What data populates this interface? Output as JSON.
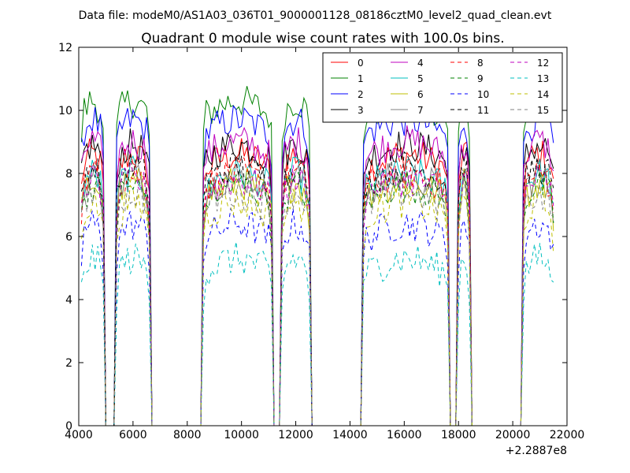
{
  "figure": {
    "suptitle": "Data file: modeM0/AS1A03_036T01_9000001128_08186cztM0_level2_quad_clean.evt"
  },
  "chart_data": {
    "type": "line",
    "title": "Quadrant 0 module wise count rates with 100.0s bins.",
    "xlabel": "",
    "ylabel": "",
    "x_offset_label": "+2.2887e8",
    "xlim": [
      4000,
      22000
    ],
    "ylim": [
      0,
      12
    ],
    "xticks": [
      4000,
      6000,
      8000,
      10000,
      12000,
      14000,
      16000,
      18000,
      20000,
      22000
    ],
    "yticks": [
      0,
      2,
      4,
      6,
      8,
      10,
      12
    ],
    "grid": false,
    "legend_position": "top-right",
    "legend_columns": 4,
    "segments": [
      {
        "start": 4100,
        "end": 4900
      },
      {
        "start": 5400,
        "end": 6600
      },
      {
        "start": 8600,
        "end": 11100
      },
      {
        "start": 11500,
        "end": 12500
      },
      {
        "start": 14500,
        "end": 17600
      },
      {
        "start": 18000,
        "end": 18400
      },
      {
        "start": 20400,
        "end": 21500
      }
    ],
    "zero_spans": [
      {
        "start": 5000,
        "end": 5200
      },
      {
        "start": 6700,
        "end": 8500
      },
      {
        "start": 11200,
        "end": 11300
      },
      {
        "start": 12600,
        "end": 14400
      },
      {
        "start": 17700,
        "end": 17800
      },
      {
        "start": 18500,
        "end": 20200
      }
    ],
    "series": [
      {
        "name": "0",
        "color": "#ff0000",
        "dash": "solid",
        "level": 8.5
      },
      {
        "name": "1",
        "color": "#008000",
        "dash": "solid",
        "level": 10.2
      },
      {
        "name": "2",
        "color": "#0000ff",
        "dash": "solid",
        "level": 9.6
      },
      {
        "name": "3",
        "color": "#000000",
        "dash": "solid",
        "level": 8.8
      },
      {
        "name": "4",
        "color": "#bf00bf",
        "dash": "solid",
        "level": 8.9
      },
      {
        "name": "5",
        "color": "#00bfbf",
        "dash": "solid",
        "level": 7.9
      },
      {
        "name": "6",
        "color": "#bfbf00",
        "dash": "solid",
        "level": 7.6
      },
      {
        "name": "7",
        "color": "#808080",
        "dash": "solid",
        "level": 7.8
      },
      {
        "name": "8",
        "color": "#ff0000",
        "dash": "dashed",
        "level": 7.9
      },
      {
        "name": "9",
        "color": "#008000",
        "dash": "dashed",
        "level": 7.5
      },
      {
        "name": "10",
        "color": "#0000ff",
        "dash": "dashed",
        "level": 6.3
      },
      {
        "name": "11",
        "color": "#000000",
        "dash": "dashed",
        "level": 8.1
      },
      {
        "name": "12",
        "color": "#bf00bf",
        "dash": "dashed",
        "level": 7.7
      },
      {
        "name": "13",
        "color": "#00bfbf",
        "dash": "dashed",
        "level": 5.2
      },
      {
        "name": "14",
        "color": "#bfbf00",
        "dash": "dashed",
        "level": 7.0
      },
      {
        "name": "15",
        "color": "#808080",
        "dash": "dashed",
        "level": 7.3
      }
    ]
  }
}
